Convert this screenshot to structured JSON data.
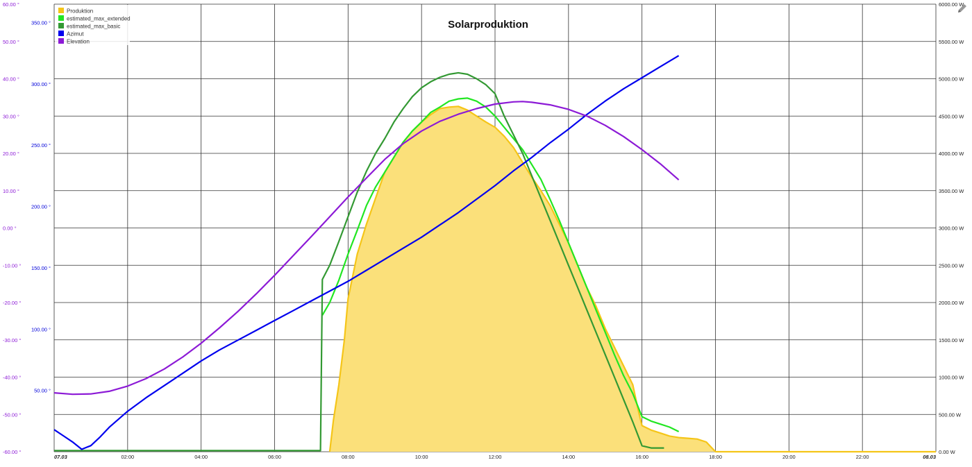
{
  "chart_data": {
    "type": "line",
    "title": "Solarproduktion",
    "x_ticks": [
      "07.03",
      "02:00",
      "04:00",
      "06:00",
      "08:00",
      "10:00",
      "12:00",
      "14:00",
      "16:00",
      "18:00",
      "20:00",
      "22:00",
      "08.03"
    ],
    "x_range_hours": [
      0,
      24
    ],
    "axes": {
      "elevation": {
        "ticks": [
          "60.00 °",
          "50.00 °",
          "40.00 °",
          "30.00 °",
          "20.00 °",
          "10.00 °",
          "0.00 °",
          "-10.00 °",
          "-20.00 °",
          "-30.00 °",
          "-40.00 °",
          "-50.00 °",
          "-60.00 °"
        ],
        "range": [
          -60,
          60
        ],
        "color": "#8c1ad6"
      },
      "azimut": {
        "ticks": [
          "350.00 °",
          "300.00 °",
          "250.00 °",
          "200.00 °",
          "150.00 °",
          "100.00 °",
          "50.00 °"
        ],
        "range": [
          0,
          365
        ],
        "color": "#0000d9"
      },
      "power": {
        "ticks": [
          "6000.00 W",
          "5500.00 W",
          "5000.00 W",
          "4500.00 W",
          "4000.00 W",
          "3500.00 W",
          "3000.00 W",
          "2500.00 W",
          "2000.00 W",
          "1500.00 W",
          "1000.00 W",
          "500.00 W",
          "0.00 W"
        ],
        "range": [
          0,
          6000
        ],
        "unit": "W"
      }
    },
    "grid": true,
    "legend_position": "top-left",
    "legend": [
      {
        "name": "Produktion",
        "color": "#f5c518"
      },
      {
        "name": "estimated_max_extended",
        "color": "#22e622"
      },
      {
        "name": "estimated_max_basic",
        "color": "#339933"
      },
      {
        "name": "Azimut",
        "color": "#0000ee"
      },
      {
        "name": "Elevation",
        "color": "#8c1ad6"
      }
    ],
    "series": [
      {
        "name": "Produktion",
        "axis": "power",
        "kind": "area",
        "color": "#f5c518",
        "fill": "#fbe07a",
        "x": [
          7.5,
          7.6,
          7.75,
          7.9,
          8.0,
          8.25,
          8.5,
          8.75,
          9.0,
          9.25,
          9.5,
          9.75,
          10.0,
          10.25,
          10.5,
          10.75,
          11.0,
          11.25,
          11.5,
          11.75,
          12.0,
          12.25,
          12.5,
          12.75,
          13.0,
          13.25,
          13.5,
          13.75,
          14.0,
          14.25,
          14.5,
          14.75,
          15.0,
          15.25,
          15.5,
          15.75,
          15.9,
          16.0,
          16.25,
          16.5,
          16.75,
          17.0,
          17.25,
          17.5,
          17.75,
          18.0,
          18.1,
          19.0,
          20.0,
          22.0,
          24.0
        ],
        "y": [
          0,
          420,
          900,
          1500,
          2050,
          2650,
          3050,
          3400,
          3750,
          3950,
          4150,
          4300,
          4420,
          4520,
          4600,
          4620,
          4630,
          4580,
          4500,
          4420,
          4350,
          4230,
          4080,
          3880,
          3680,
          3500,
          3300,
          3050,
          2800,
          2500,
          2200,
          1950,
          1650,
          1400,
          1150,
          900,
          550,
          350,
          290,
          250,
          210,
          190,
          180,
          170,
          130,
          0,
          0,
          0,
          0,
          0,
          0
        ]
      },
      {
        "name": "estimated_max_extended",
        "axis": "power",
        "kind": "line",
        "color": "#22e622",
        "x": [
          7.3,
          7.5,
          7.75,
          8.0,
          8.25,
          8.5,
          8.75,
          9.0,
          9.25,
          9.5,
          9.75,
          10.0,
          10.25,
          10.5,
          10.75,
          11.0,
          11.25,
          11.5,
          11.75,
          12.0,
          12.25,
          12.5,
          12.75,
          13.0,
          13.25,
          13.5,
          13.75,
          14.0,
          14.25,
          14.5,
          14.75,
          15.0,
          15.25,
          15.5,
          15.75,
          16.0,
          16.25,
          16.5,
          16.75,
          17.0
        ],
        "y": [
          1830,
          2000,
          2300,
          2650,
          2970,
          3300,
          3550,
          3750,
          3950,
          4150,
          4300,
          4420,
          4550,
          4620,
          4700,
          4730,
          4740,
          4700,
          4620,
          4500,
          4350,
          4200,
          4050,
          3850,
          3650,
          3380,
          3100,
          2800,
          2500,
          2200,
          1900,
          1600,
          1300,
          1020,
          780,
          470,
          410,
          370,
          330,
          270
        ]
      },
      {
        "name": "estimated_max_basic",
        "axis": "power",
        "kind": "line",
        "color": "#339933",
        "x": [
          0,
          7.25,
          7.3,
          7.5,
          7.75,
          8.0,
          8.25,
          8.5,
          8.75,
          9.0,
          9.25,
          9.5,
          9.75,
          10.0,
          10.25,
          10.5,
          10.75,
          11.0,
          11.25,
          11.5,
          11.75,
          12.0,
          12.25,
          12.5,
          12.75,
          13.0,
          13.25,
          13.5,
          13.75,
          14.0,
          14.25,
          14.5,
          14.75,
          15.0,
          15.25,
          15.5,
          15.75,
          16.0,
          16.25,
          16.5,
          16.6
        ],
        "y": [
          15,
          15,
          2310,
          2500,
          2820,
          3150,
          3480,
          3760,
          4000,
          4200,
          4420,
          4600,
          4760,
          4880,
          4960,
          5020,
          5060,
          5080,
          5060,
          5000,
          4920,
          4800,
          4500,
          4250,
          4000,
          3700,
          3400,
          3100,
          2800,
          2500,
          2200,
          1900,
          1600,
          1300,
          1000,
          700,
          400,
          80,
          50,
          50,
          50
        ]
      },
      {
        "name": "Azimut",
        "axis": "azimut",
        "kind": "line",
        "color": "#0000ee",
        "x": [
          0,
          0.25,
          0.5,
          0.75,
          1.0,
          1.25,
          1.5,
          2.0,
          2.5,
          3.0,
          3.5,
          4.0,
          4.5,
          5.0,
          5.5,
          6.0,
          6.5,
          7.0,
          7.5,
          8.0,
          8.5,
          9.0,
          9.5,
          10.0,
          10.5,
          11.0,
          11.5,
          12.0,
          12.5,
          13.0,
          13.5,
          14.0,
          14.5,
          15.0,
          15.5,
          16.0,
          16.5,
          17.0
        ],
        "y": [
          18,
          13,
          8,
          2,
          5,
          12,
          20,
          33,
          44,
          54,
          64,
          74,
          83,
          91,
          99,
          107,
          115,
          123,
          131,
          139,
          148,
          157,
          166,
          175,
          185,
          195,
          206,
          217,
          229,
          240,
          252,
          263,
          275,
          286,
          296,
          305,
          314,
          323
        ]
      },
      {
        "name": "Elevation",
        "axis": "elevation",
        "kind": "line",
        "color": "#8c1ad6",
        "x": [
          0,
          0.5,
          1.0,
          1.5,
          2.0,
          2.5,
          3.0,
          3.5,
          4.0,
          4.5,
          5.0,
          5.5,
          6.0,
          6.5,
          7.0,
          7.5,
          8.0,
          8.5,
          9.0,
          9.5,
          10.0,
          10.5,
          11.0,
          11.5,
          12.0,
          12.5,
          12.75,
          13.0,
          13.5,
          14.0,
          14.5,
          15.0,
          15.5,
          16.0,
          16.5,
          17.0
        ],
        "y": [
          -44.2,
          -44.6,
          -44.5,
          -43.8,
          -42.4,
          -40.4,
          -37.8,
          -34.6,
          -30.9,
          -26.8,
          -22.4,
          -17.7,
          -12.7,
          -7.5,
          -2.3,
          3.0,
          8.3,
          13.4,
          18.4,
          22.6,
          26.0,
          28.6,
          30.5,
          32.0,
          33.2,
          33.8,
          33.9,
          33.7,
          33.0,
          31.8,
          30.0,
          27.5,
          24.5,
          21.0,
          17.2,
          12.9
        ]
      }
    ]
  }
}
